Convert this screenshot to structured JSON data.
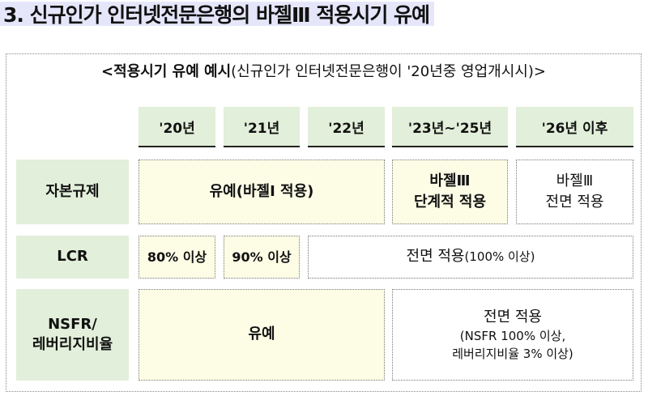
{
  "title": "3. 신규인가 인터넷전문은행의 바젤Ⅲ 적용시기 유예",
  "subtitle": {
    "bold": "<적용시기 유예 예시",
    "normal": "(신규인가 인터넷전문은행이 '20년중 영업개시시)>"
  },
  "headers": [
    "'20년",
    "'21년",
    "'22년",
    "'23년~'25년",
    "'26년 이후"
  ],
  "rows": {
    "capital": {
      "label": "자본규제",
      "c1": "유예(바젤I 적용)",
      "c2_l1": "바젤Ⅲ",
      "c2_l2": "단계적 적용",
      "c3_l1": "바젤Ⅲ",
      "c3_l2": "전면 적용"
    },
    "lcr": {
      "label": "LCR",
      "c1": "80% 이상",
      "c2": "90% 이상",
      "c3_main": "전면 적용",
      "c3_sub": "(100% 이상)"
    },
    "nsfr": {
      "label_l1": "NSFR/",
      "label_l2": "레버리지비율",
      "c1": "유예",
      "c2_l1": "전면 적용",
      "c2_l2": "(NSFR 100% 이상,",
      "c2_l3": "레버리지비율 3% 이상)"
    }
  },
  "colors": {
    "header_bg": "#e2efda",
    "deferral_bg": "#fdfde6",
    "title_bg": "#e6e6fb"
  }
}
